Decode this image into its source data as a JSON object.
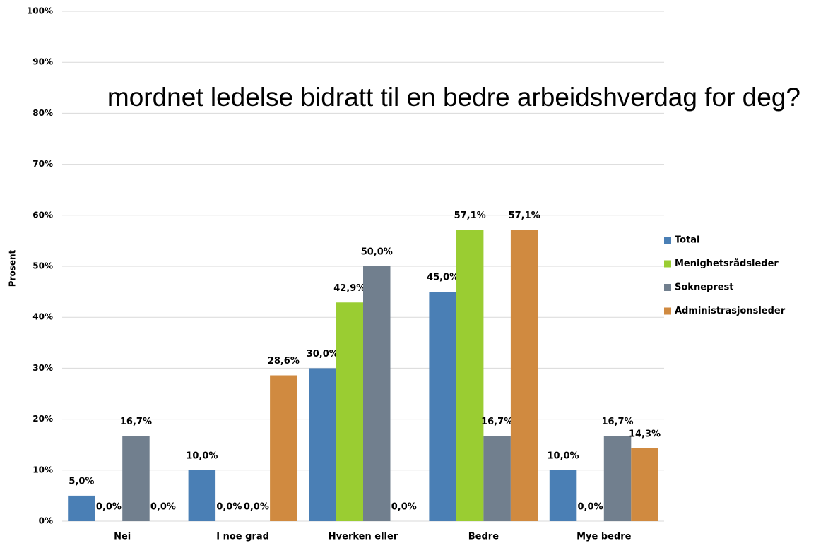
{
  "chart_data": {
    "type": "bar",
    "title": "mordnet ledelse bidratt til en bedre arbeidshverdag for deg?",
    "y_label": "Prosent",
    "categories": [
      "Nei",
      "I noe grad",
      "Hverken eller",
      "Bedre",
      "Mye bedre"
    ],
    "series": [
      {
        "name": "Total",
        "color": "#4a7fb5",
        "values": [
          5,
          10,
          30,
          45,
          10
        ],
        "value_labels": [
          "5,0%",
          "10,0%",
          "30,0%",
          "45,0%",
          "10,0%"
        ]
      },
      {
        "name": "Menighetsrådsleder",
        "color": "#9acd32",
        "values": [
          0,
          0,
          42.9,
          57.1,
          0
        ],
        "value_labels": [
          "0,0%",
          "0,0%",
          "42,9%",
          "57,1%",
          "0,0%"
        ]
      },
      {
        "name": "Sokneprest",
        "color": "#717f8e",
        "values": [
          16.7,
          0,
          50,
          16.7,
          16.7
        ],
        "value_labels": [
          "16,7%",
          "0,0%",
          "50,0%",
          "16,7%",
          "16,7%"
        ]
      },
      {
        "name": "Administrasjonsleder",
        "color": "#d08a40",
        "values": [
          0,
          28.6,
          0,
          57.1,
          14.3
        ],
        "value_labels": [
          "0,0%",
          "28,6%",
          "0,0%",
          "57,1%",
          "14,3%"
        ]
      }
    ],
    "ylim": [
      0,
      100
    ],
    "yticks": [
      {
        "value": 0,
        "label": "0%"
      },
      {
        "value": 10,
        "label": "10%"
      },
      {
        "value": 20,
        "label": "20%"
      },
      {
        "value": 30,
        "label": "30%"
      },
      {
        "value": 40,
        "label": "40%"
      },
      {
        "value": 50,
        "label": "50%"
      },
      {
        "value": 60,
        "label": "60%"
      },
      {
        "value": 70,
        "label": "70%"
      },
      {
        "value": 80,
        "label": "80%"
      },
      {
        "value": 90,
        "label": "90%"
      },
      {
        "value": 100,
        "label": "100%"
      }
    ],
    "grid": true,
    "legend": "right"
  }
}
